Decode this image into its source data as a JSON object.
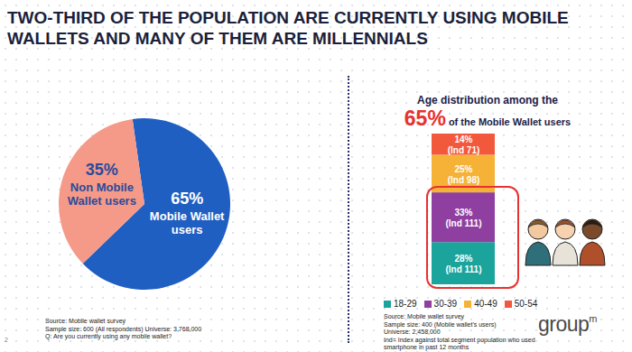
{
  "title": "TWO-THIRD OF THE POPULATION ARE CURRENTLY USING MOBILE WALLETS AND MANY OF THEM ARE MILLENNIALS",
  "page_number": "2",
  "logo": {
    "text": "group",
    "superscript": "m"
  },
  "chart_data": [
    {
      "type": "pie",
      "categories": [
        "Mobile Wallet users",
        "Non Mobile Wallet users"
      ],
      "values": [
        65,
        35
      ],
      "value_labels": [
        "65%",
        "35%"
      ],
      "colors": [
        "#1f5fc1",
        "#f59a88"
      ],
      "data_labels": true,
      "notes": [
        "Source: Mobile wallet survey",
        "Sample size: 600 (All respondents) Universe: 3,768,000",
        "Q: Are you currently using any mobile wallet?"
      ]
    },
    {
      "type": "bar",
      "title": "Age distribution among the 65% of the Mobile Wallet users",
      "stacked": true,
      "data_labels": true,
      "tick_labels": false,
      "legend": "bottom",
      "categories": [
        null
      ],
      "ylim": [
        0,
        100
      ],
      "series": [
        {
          "name": "18-29",
          "color": "#1aa49c",
          "values": [
            28
          ],
          "value_labels": [
            "28%"
          ],
          "index": [
            111
          ],
          "index_labels": [
            "(Ind 111)"
          ]
        },
        {
          "name": "30-39",
          "color": "#8f3f9f",
          "values": [
            33
          ],
          "value_labels": [
            "33%"
          ],
          "index": [
            111
          ],
          "index_labels": [
            "(Ind 111)"
          ]
        },
        {
          "name": "40-49",
          "color": "#f5b236",
          "values": [
            25
          ],
          "value_labels": [
            "25%"
          ],
          "index": [
            98
          ],
          "index_labels": [
            "(Ind 98)"
          ]
        },
        {
          "name": "50-54",
          "color": "#f2583c",
          "values": [
            14
          ],
          "value_labels": [
            "14%"
          ],
          "index": [
            71
          ],
          "index_labels": [
            "(Ind 71)"
          ]
        }
      ],
      "notes": [
        "Source: Mobile wallet survey",
        "Sample size: 400 (Mobile wallet's users)",
        "Universe: 2,458,000",
        "Ind= Index against total segment population who used smartphone in past 12 months"
      ]
    }
  ]
}
